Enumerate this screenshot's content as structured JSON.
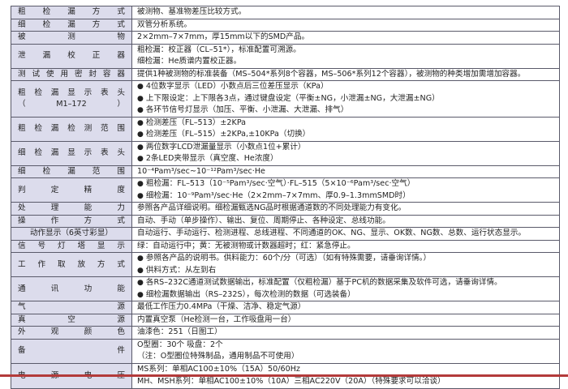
{
  "rows": [
    {
      "label": [
        "粗检漏方式"
      ],
      "bullet": false,
      "lines": [
        "被测物、基准物差压比较方式。"
      ]
    },
    {
      "label": [
        "细检漏方式"
      ],
      "bullet": false,
      "lines": [
        "双管分析系统。"
      ]
    },
    {
      "label": [
        "被测物"
      ],
      "bullet": false,
      "lines": [
        "2×2mm–7×7mm，厚15mm以下的SMD产品。"
      ]
    },
    {
      "label": [
        "泄漏校正器"
      ],
      "bullet": false,
      "lines": [
        "粗检漏：校正器（CL–51*），标准配置可溯源。",
        "细检漏：He质谱内置校正器。"
      ]
    },
    {
      "label": [
        "测试使用密封容器"
      ],
      "bullet": false,
      "lines": [
        "提供1种被测物的标准装备（MS–504*系列8个容器，MS–506*系列12个容器），被测物的种类增加需增加容器。"
      ]
    },
    {
      "label": [
        "粗检漏显示表头",
        "（M1–172）"
      ],
      "bullet": true,
      "lines": [
        "4位数字显示（LED）小数点后三位差压显示（KPa）",
        "上下限设定：上下限各3点，通过键盘设定（平衡±NG，小泄漏±NG，大泄漏±NG）",
        "各环节信号灯显示（加压、平衡、小泄漏、大泄漏、排气）"
      ]
    },
    {
      "label": [
        "粗检漏检测范围"
      ],
      "bullet": true,
      "lines": [
        "检测差压（FL–513）±2KPa",
        "检测差压（FL–515）±2KPa,±10KPa（切换）"
      ]
    },
    {
      "label": [
        "细检漏显示表头"
      ],
      "bullet": true,
      "lines": [
        "两位数字LCD泄漏量显示（小数点1位+累计）",
        "2条LED夹带显示（真空度、He浓度）"
      ]
    },
    {
      "label": [
        "细检漏范围"
      ],
      "bullet": false,
      "lines": [
        "10⁻⁴Pam³/sec~10⁻¹²Pam³/sec·He"
      ]
    },
    {
      "label": [
        "判定精度"
      ],
      "bullet": true,
      "lines": [
        "粗检漏：FL–513（10⁻⁵Pam³/sec·空气）·FL–515（5×10⁻⁶Pam³/sec·空气）",
        "细检漏：10⁻⁹Pam³/sec·He（2×2mm–7×7mm、厚0.9–1.3mmSMD时）"
      ]
    },
    {
      "label": [
        "处理能力"
      ],
      "bullet": false,
      "lines": [
        "参照各产品详细说明。细检漏甄选NG品时根据通道数的不同处理能力有变化。"
      ]
    },
    {
      "label": [
        "操作方式"
      ],
      "bullet": false,
      "lines": [
        "自动、手动（单步操作）、输出、复位、周期停止、各种设定、总线功能。"
      ]
    },
    {
      "label": [
        "动作显示（6英寸彩显）"
      ],
      "bullet": false,
      "lines": [
        "自动运行、手动运行、检测进程、总线进程、不同通道的OK、NG、显示、OK数、NG数、总数、运行状态显示。"
      ]
    },
    {
      "label": [
        "信号灯塔显示"
      ],
      "bullet": false,
      "lines": [
        "绿：自动运行中；黄：无被测物或计数器超时；红：紧急停止。"
      ]
    },
    {
      "label": [
        "工作取放方式"
      ],
      "bullet": true,
      "lines": [
        "参照各产品的说明书。供料能力：60个/分（可选）（如有特殊需要，请垂询详情。）",
        "供料方式：从左到右"
      ]
    },
    {
      "label": [
        "通讯功能"
      ],
      "bullet": true,
      "lines": [
        "各RS–232C通道测试数据输出，标准配置（仅粗检漏）基于PC机的数据采集及软件可选，请垂询详情。",
        "细检漏数据输出（RS–232S），每次检测的数据（可选装备）"
      ]
    },
    {
      "label": [
        "气源"
      ],
      "bullet": false,
      "lines": [
        "最低工作压力0.4MPa（干燥、洁净、稳定气源）"
      ]
    },
    {
      "label": [
        "真空源"
      ],
      "bullet": false,
      "lines": [
        "内置真空泵（He检测一台，工作吸盘用一台）"
      ]
    },
    {
      "label": [
        "外观颜色"
      ],
      "bullet": false,
      "lines": [
        "油漆色：251（日图工）"
      ]
    },
    {
      "label": [
        "备件"
      ],
      "bullet": false,
      "lines": [
        "O型圈：30个 吸盘：2个",
        "（注：O型圈位特殊制品，通用制品不可使用）"
      ]
    },
    {
      "label": [
        "电源电压"
      ],
      "bullet": false,
      "split": true,
      "lines": [
        "MS系列：单相AC100±10%（15A）50/60Hz",
        "MH、MSH系列：单相AC100±10%（10A）三相AC220V（20A）（特殊要求可以洽谈）"
      ]
    }
  ],
  "colors": {
    "label_bg": "#dcdcec",
    "border": "#5a5a6a",
    "accent_rule": "#b33a3a"
  }
}
